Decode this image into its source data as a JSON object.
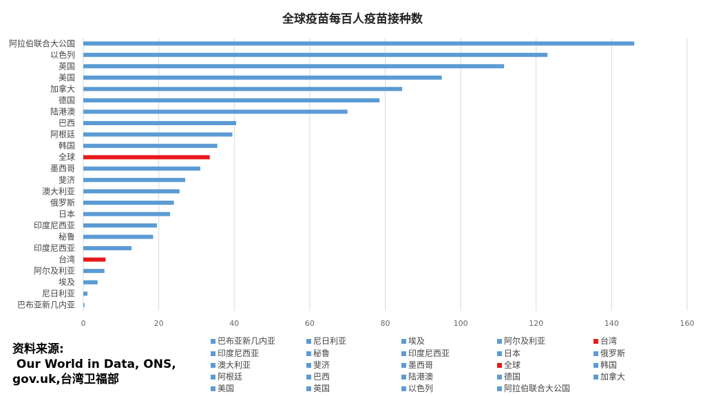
{
  "chart_data": {
    "type": "bar",
    "orientation": "horizontal",
    "title": "全球疫苗每百人疫苗接种数",
    "xlabel": "",
    "ylabel": "",
    "xlim": [
      0,
      160
    ],
    "xticks": [
      0,
      20,
      40,
      60,
      80,
      100,
      120,
      140,
      160
    ],
    "grid": "vertical",
    "categories": [
      "阿拉伯联合大公国",
      "以色列",
      "英国",
      "美国",
      "加拿大",
      "德国",
      "陆港澳",
      "巴西",
      "阿根廷",
      "韩国",
      "全球",
      "墨西哥",
      "斐济",
      "澳大利亚",
      "俄罗斯",
      "日本",
      "印度尼西亚",
      "秘鲁",
      "印度尼西亚",
      "台湾",
      "阿尔及利亚",
      "埃及",
      "尼日利亚",
      "巴布亚新几内亚"
    ],
    "values": [
      146,
      123,
      111.5,
      95,
      84.5,
      78.5,
      70,
      40.5,
      39.5,
      35.5,
      33.5,
      31,
      27,
      25.5,
      24,
      23,
      19.5,
      18.5,
      12.8,
      5.9,
      5.6,
      3.8,
      1.1,
      0.3
    ],
    "colors": [
      "#5b9bd5",
      "#5b9bd5",
      "#5b9bd5",
      "#5b9bd5",
      "#5b9bd5",
      "#5b9bd5",
      "#5b9bd5",
      "#5b9bd5",
      "#5b9bd5",
      "#5b9bd5",
      "#e8191c",
      "#5b9bd5",
      "#5b9bd5",
      "#5b9bd5",
      "#5b9bd5",
      "#5b9bd5",
      "#5b9bd5",
      "#5b9bd5",
      "#5b9bd5",
      "#e8191c",
      "#5b9bd5",
      "#5b9bd5",
      "#5b9bd5",
      "#5b9bd5"
    ],
    "legend": {
      "placement": "bottom",
      "entries": [
        {
          "label": "巴布亚新几内亚",
          "color": "#5b9bd5"
        },
        {
          "label": "尼日利亚",
          "color": "#5b9bd5"
        },
        {
          "label": "埃及",
          "color": "#5b9bd5"
        },
        {
          "label": "阿尔及利亚",
          "color": "#5b9bd5"
        },
        {
          "label": "台湾",
          "color": "#e8191c"
        },
        {
          "label": "印度尼西亚",
          "color": "#5b9bd5"
        },
        {
          "label": "秘鲁",
          "color": "#5b9bd5"
        },
        {
          "label": "印度尼西亚",
          "color": "#5b9bd5"
        },
        {
          "label": "日本",
          "color": "#5b9bd5"
        },
        {
          "label": "俄罗斯",
          "color": "#5b9bd5"
        },
        {
          "label": "澳大利亚",
          "color": "#5b9bd5"
        },
        {
          "label": "斐济",
          "color": "#5b9bd5"
        },
        {
          "label": "墨西哥",
          "color": "#5b9bd5"
        },
        {
          "label": "全球",
          "color": "#e8191c"
        },
        {
          "label": "韩国",
          "color": "#5b9bd5"
        },
        {
          "label": "阿根廷",
          "color": "#5b9bd5"
        },
        {
          "label": "巴西",
          "color": "#5b9bd5"
        },
        {
          "label": "陆港澳",
          "color": "#5b9bd5"
        },
        {
          "label": "德国",
          "color": "#5b9bd5"
        },
        {
          "label": "加拿大",
          "color": "#5b9bd5"
        },
        {
          "label": "美国",
          "color": "#5b9bd5"
        },
        {
          "label": "英国",
          "color": "#5b9bd5"
        },
        {
          "label": "以色列",
          "color": "#5b9bd5"
        },
        {
          "label": "阿拉伯联合大公国",
          "color": "#5b9bd5"
        }
      ]
    }
  },
  "source": {
    "lines": [
      "资料来源:",
      " Our World in Data, ONS,",
      "gov.uk,台湾卫福部"
    ]
  }
}
